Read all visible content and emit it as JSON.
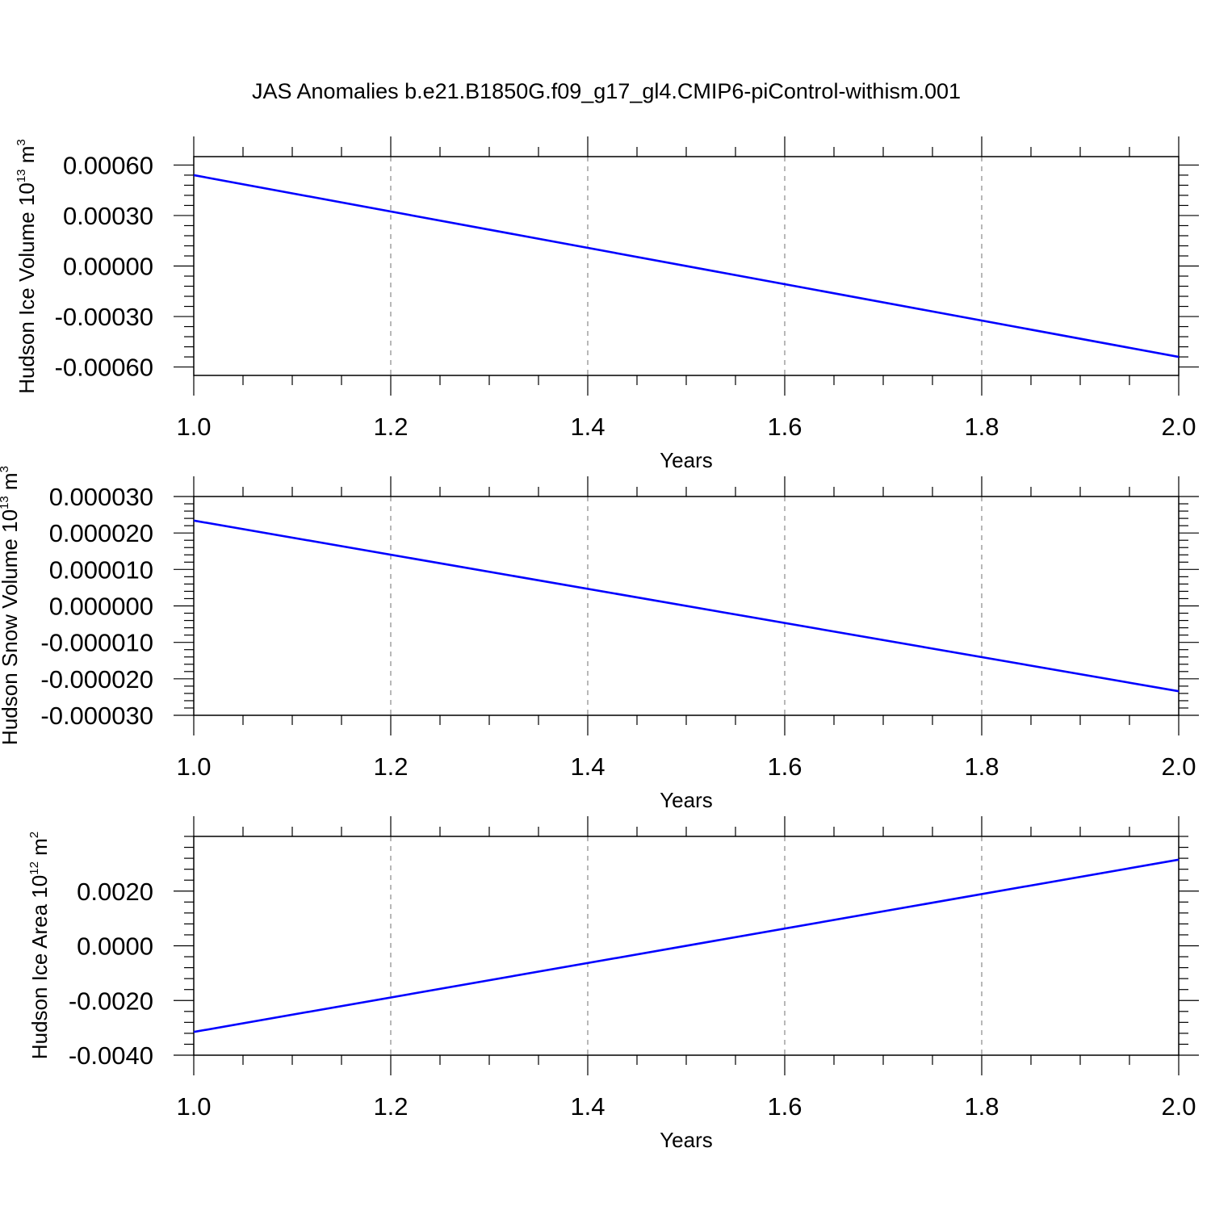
{
  "title": "JAS Anomalies b.e21.B1850G.f09_g17_gl4.CMIP6-piControl-withism.001",
  "colors": {
    "series": "#0000ff"
  },
  "chart_data": [
    {
      "type": "line",
      "xlabel": "Years",
      "ylabel": {
        "text": "Hudson Ice Volume 10",
        "sup1": "13",
        "unit": " m",
        "sup2": "3"
      },
      "xlim": [
        1.0,
        2.0
      ],
      "ylim": [
        -0.00065,
        0.00065
      ],
      "x_ticks": [
        "1.0",
        "1.2",
        "1.4",
        "1.6",
        "1.8",
        "2.0"
      ],
      "y_ticks": [
        {
          "v": 0.0006,
          "label": "0.00060"
        },
        {
          "v": 0.0003,
          "label": "0.00030"
        },
        {
          "v": 0.0,
          "label": "0.00000"
        },
        {
          "v": -0.0003,
          "label": "-0.00030"
        },
        {
          "v": -0.0006,
          "label": "-0.00060"
        }
      ],
      "grid": "vertical dashed",
      "series": [
        {
          "x": [
            1.0,
            2.0
          ],
          "y": [
            0.00054,
            -0.00054
          ]
        }
      ]
    },
    {
      "type": "line",
      "xlabel": "Years",
      "ylabel": {
        "text": "Hudson Snow Volume 10",
        "sup1": "13",
        "unit": " m",
        "sup2": "3"
      },
      "xlim": [
        1.0,
        2.0
      ],
      "ylim": [
        -3e-05,
        3e-05
      ],
      "x_ticks": [
        "1.0",
        "1.2",
        "1.4",
        "1.6",
        "1.8",
        "2.0"
      ],
      "y_ticks": [
        {
          "v": 3e-05,
          "label": "0.000030"
        },
        {
          "v": 2e-05,
          "label": "0.000020"
        },
        {
          "v": 1e-05,
          "label": "0.000010"
        },
        {
          "v": 0.0,
          "label": "0.000000"
        },
        {
          "v": -1e-05,
          "label": "-0.000010"
        },
        {
          "v": -2e-05,
          "label": "-0.000020"
        },
        {
          "v": -3e-05,
          "label": "-0.000030"
        }
      ],
      "grid": "vertical dashed",
      "series": [
        {
          "x": [
            1.0,
            2.0
          ],
          "y": [
            2.34e-05,
            -2.34e-05
          ]
        }
      ]
    },
    {
      "type": "line",
      "xlabel": "Years",
      "ylabel": {
        "text": "Hudson Ice Area 10",
        "sup1": "12",
        "unit": " m",
        "sup2": "2"
      },
      "xlim": [
        1.0,
        2.0
      ],
      "ylim": [
        -0.004,
        0.004
      ],
      "x_ticks": [
        "1.0",
        "1.2",
        "1.4",
        "1.6",
        "1.8",
        "2.0"
      ],
      "y_ticks": [
        {
          "v": 0.002,
          "label": "0.0020"
        },
        {
          "v": 0.0,
          "label": "0.0000"
        },
        {
          "v": -0.002,
          "label": "-0.0020"
        },
        {
          "v": -0.004,
          "label": "-0.0040"
        }
      ],
      "grid": "vertical dashed",
      "series": [
        {
          "x": [
            1.0,
            2.0
          ],
          "y": [
            -0.00315,
            0.00315
          ]
        }
      ]
    }
  ]
}
